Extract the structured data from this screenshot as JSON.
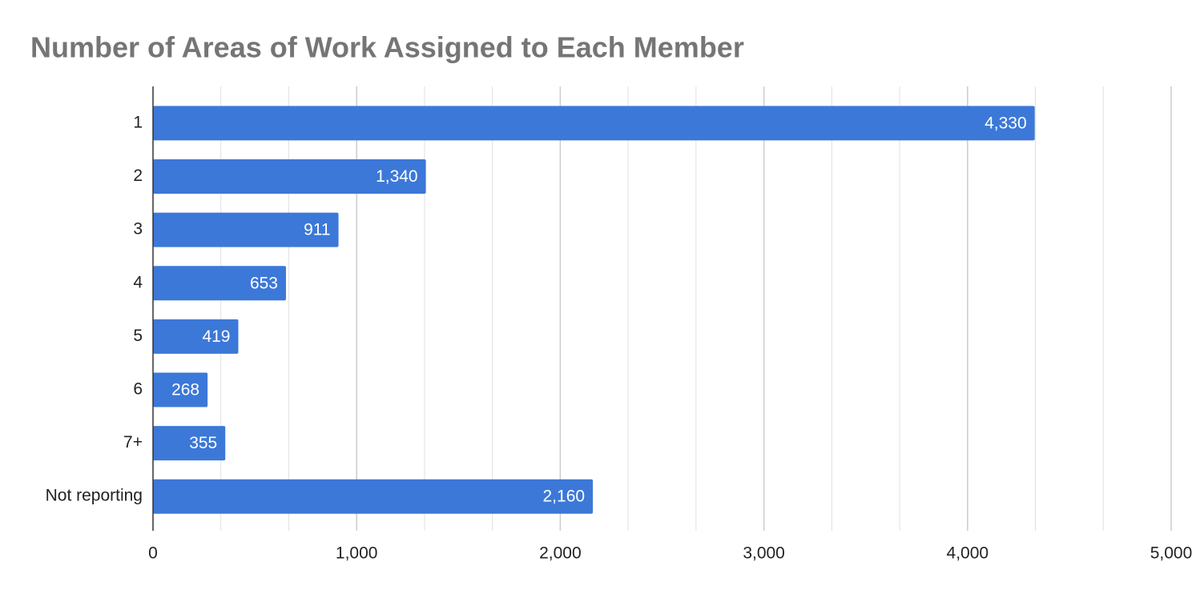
{
  "chart_data": {
    "type": "hbar",
    "title": "Number of Areas of Work Assigned to Each Member",
    "categories": [
      "1",
      "2",
      "3",
      "4",
      "5",
      "6",
      "7+",
      "Not reporting"
    ],
    "values": [
      4330,
      1340,
      911,
      653,
      419,
      268,
      355,
      2160
    ],
    "value_labels": [
      "4,330",
      "1,340",
      "911",
      "653",
      "419",
      "268",
      "355",
      "2,160"
    ],
    "color": "#3c78d8",
    "xlim": [
      0,
      5000
    ],
    "xticks": [
      0,
      {
        "value": 1000,
        "label": "1,000"
      },
      {
        "value": 2000,
        "label": "2,000"
      },
      {
        "value": 3000,
        "label": "3,000"
      },
      {
        "value": 4000,
        "label": "4,000"
      },
      {
        "value": 5000,
        "label": "5,000"
      }
    ],
    "grid": true,
    "minor_grid_divisions": 3
  }
}
